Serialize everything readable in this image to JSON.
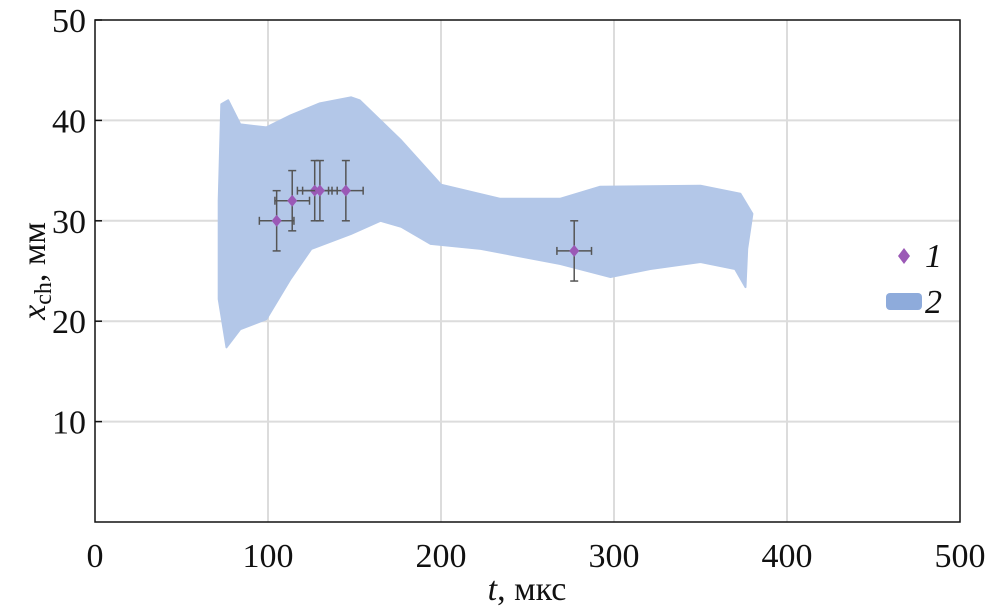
{
  "chart_data": {
    "type": "scatter",
    "title": "",
    "xlabel": "t, мкс",
    "xlabel_var": "t",
    "xlabel_unit": ", мкс",
    "ylabel_var": "x",
    "ylabel_sub": "ch",
    "ylabel_unit": ", мм",
    "xlim": [
      0,
      500
    ],
    "ylim": [
      0,
      50
    ],
    "xticks": [
      0,
      100,
      200,
      300,
      400,
      500
    ],
    "yticks": [
      10,
      20,
      30,
      40,
      50
    ],
    "grid": true,
    "legend_placement": "right",
    "series": [
      {
        "name": "1",
        "kind": "points-with-errorbars",
        "color": "#9b59b6",
        "points": [
          {
            "x": 105,
            "y": 30,
            "xerr": 10,
            "yerr": 3
          },
          {
            "x": 114,
            "y": 32,
            "xerr": 10,
            "yerr": 3
          },
          {
            "x": 127,
            "y": 33,
            "xerr": 10,
            "yerr": 3
          },
          {
            "x": 130,
            "y": 33,
            "xerr": 10,
            "yerr": 3
          },
          {
            "x": 145,
            "y": 33,
            "xerr": 10,
            "yerr": 3
          },
          {
            "x": 277,
            "y": 27,
            "xerr": 10,
            "yerr": 3
          }
        ]
      },
      {
        "name": "2",
        "kind": "band",
        "color": "#b3c7e8",
        "legend_color": "#8eabdb",
        "upper": [
          [
            71.5,
            32
          ],
          [
            73,
            41.6
          ],
          [
            77,
            42
          ],
          [
            84,
            39.6
          ],
          [
            99,
            39.3
          ],
          [
            113,
            40.5
          ],
          [
            130,
            41.7
          ],
          [
            148,
            42.3
          ],
          [
            153,
            42
          ],
          [
            177,
            38
          ],
          [
            200,
            33.6
          ],
          [
            234,
            32.2
          ],
          [
            269,
            32.2
          ],
          [
            292,
            33.4
          ],
          [
            350,
            33.5
          ],
          [
            373,
            32.7
          ],
          [
            380,
            30.7
          ]
        ],
        "lower": [
          [
            377,
            27.2
          ],
          [
            376,
            23.4
          ],
          [
            370,
            25.2
          ],
          [
            350,
            25.9
          ],
          [
            321,
            25.2
          ],
          [
            298,
            24.4
          ],
          [
            269,
            25.7
          ],
          [
            223,
            27.2
          ],
          [
            194,
            27.7
          ],
          [
            177,
            29.4
          ],
          [
            165,
            30
          ],
          [
            148,
            28.7
          ],
          [
            125,
            27.2
          ],
          [
            113,
            24.2
          ],
          [
            99,
            20.2
          ],
          [
            84,
            19.2
          ],
          [
            76,
            17.4
          ],
          [
            71.5,
            22.2
          ]
        ]
      }
    ]
  }
}
